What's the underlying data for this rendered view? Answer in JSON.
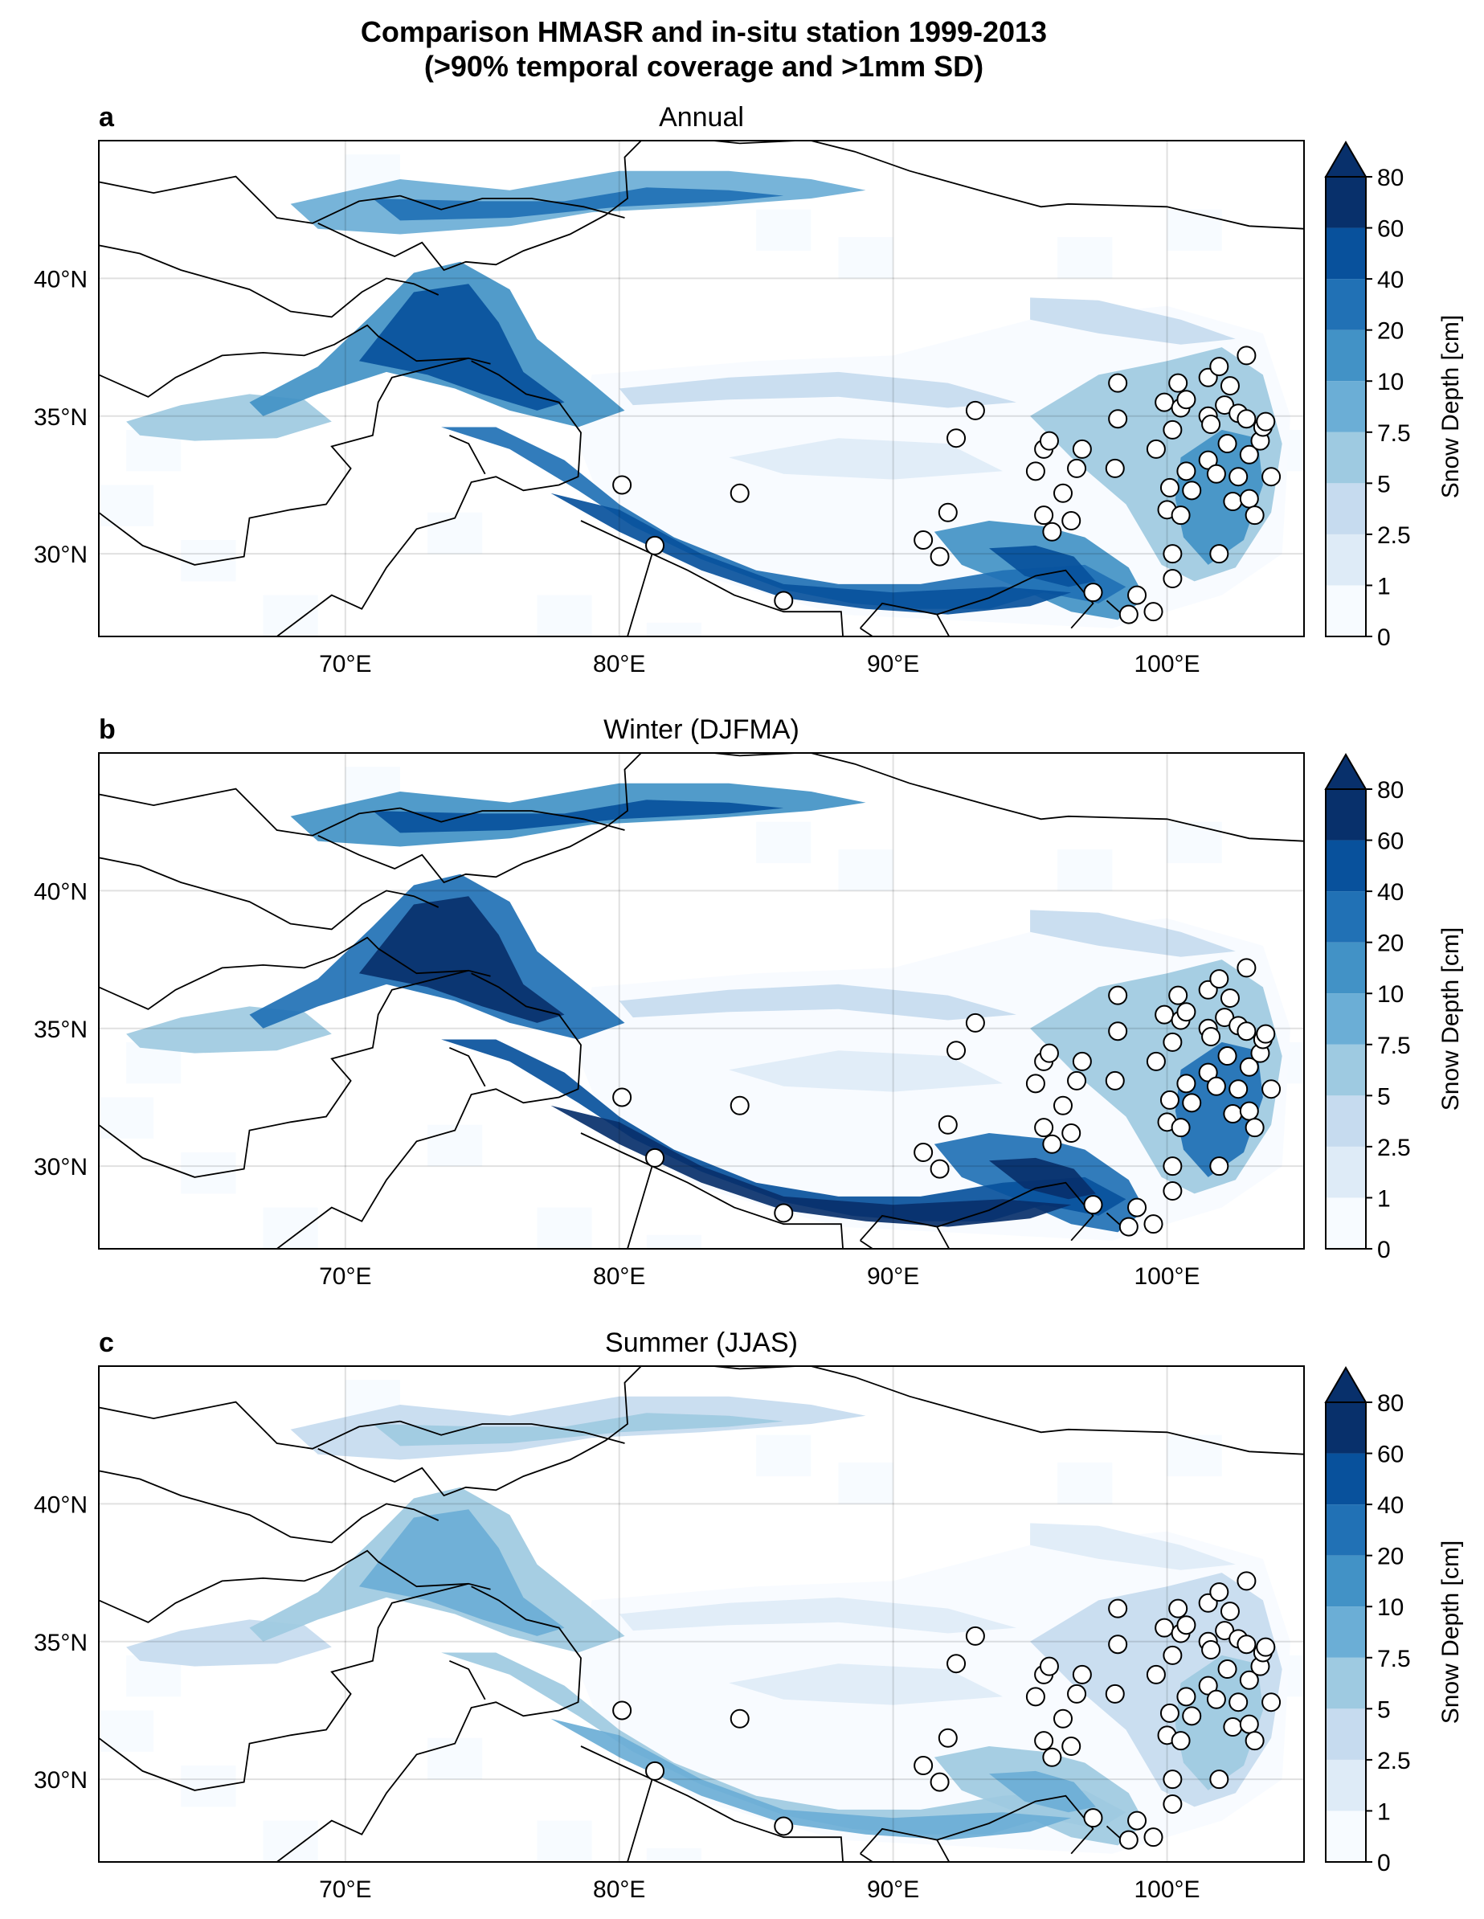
{
  "figure": {
    "title_line1": "Comparison HMASR and in-situ station 1999-2013",
    "title_line2": "(>90% temporal coverage and >1mm SD)"
  },
  "map": {
    "lon_range": [
      61,
      105
    ],
    "lat_range": [
      27,
      45
    ],
    "lon_ticks": [
      "70°E",
      "80°E",
      "90°E",
      "100°E"
    ],
    "lat_ticks": [
      "40°N",
      "35°N",
      "30°N"
    ],
    "gridlines": true,
    "colormap": "Blues",
    "colors": [
      "#f7fbff",
      "#deebf7",
      "#c6dbef",
      "#9ecae1",
      "#6baed6",
      "#4292c6",
      "#2171b5",
      "#08519c",
      "#08306b"
    ],
    "marker_face": "#ffffff",
    "marker_edge": "#000000"
  },
  "colorbar": {
    "label": "Snow Depth [cm]",
    "ticks": [
      "0",
      "1",
      "2.5",
      "5",
      "7.5",
      "10",
      "20",
      "40",
      "60",
      "80"
    ],
    "extend": "max"
  },
  "panels": [
    {
      "letter": "a",
      "title": "Annual",
      "snow_level": 1.0
    },
    {
      "letter": "b",
      "title": "Winter (DJFMA)",
      "snow_level": 1.15
    },
    {
      "letter": "c",
      "title": "Summer (JJAS)",
      "snow_level": 0.55
    }
  ],
  "stations": [
    {
      "lon": 80.1,
      "lat": 32.5
    },
    {
      "lon": 81.3,
      "lat": 30.3
    },
    {
      "lon": 84.4,
      "lat": 32.2
    },
    {
      "lon": 86.0,
      "lat": 28.3
    },
    {
      "lon": 91.1,
      "lat": 30.5
    },
    {
      "lon": 91.7,
      "lat": 29.9
    },
    {
      "lon": 92.0,
      "lat": 31.5
    },
    {
      "lon": 92.3,
      "lat": 34.2
    },
    {
      "lon": 93.0,
      "lat": 35.2
    },
    {
      "lon": 95.2,
      "lat": 33.0
    },
    {
      "lon": 95.5,
      "lat": 33.8
    },
    {
      "lon": 95.7,
      "lat": 34.1
    },
    {
      "lon": 95.5,
      "lat": 31.4
    },
    {
      "lon": 95.8,
      "lat": 30.8
    },
    {
      "lon": 96.2,
      "lat": 32.2
    },
    {
      "lon": 96.5,
      "lat": 31.2
    },
    {
      "lon": 96.7,
      "lat": 33.1
    },
    {
      "lon": 96.9,
      "lat": 33.8
    },
    {
      "lon": 97.3,
      "lat": 28.6
    },
    {
      "lon": 98.1,
      "lat": 33.1
    },
    {
      "lon": 98.2,
      "lat": 34.9
    },
    {
      "lon": 98.2,
      "lat": 36.2
    },
    {
      "lon": 98.6,
      "lat": 27.8
    },
    {
      "lon": 98.9,
      "lat": 28.5
    },
    {
      "lon": 99.5,
      "lat": 27.9
    },
    {
      "lon": 99.6,
      "lat": 33.8
    },
    {
      "lon": 99.9,
      "lat": 35.5
    },
    {
      "lon": 100.0,
      "lat": 31.6
    },
    {
      "lon": 100.1,
      "lat": 32.4
    },
    {
      "lon": 100.2,
      "lat": 34.5
    },
    {
      "lon": 100.4,
      "lat": 36.2
    },
    {
      "lon": 100.5,
      "lat": 35.3
    },
    {
      "lon": 100.5,
      "lat": 31.4
    },
    {
      "lon": 100.7,
      "lat": 33.0
    },
    {
      "lon": 100.7,
      "lat": 35.6
    },
    {
      "lon": 100.9,
      "lat": 32.3
    },
    {
      "lon": 100.2,
      "lat": 30.0
    },
    {
      "lon": 100.2,
      "lat": 29.1
    },
    {
      "lon": 101.5,
      "lat": 36.4
    },
    {
      "lon": 101.5,
      "lat": 35.0
    },
    {
      "lon": 101.6,
      "lat": 34.7
    },
    {
      "lon": 101.5,
      "lat": 33.4
    },
    {
      "lon": 101.8,
      "lat": 32.9
    },
    {
      "lon": 101.9,
      "lat": 36.8
    },
    {
      "lon": 102.1,
      "lat": 35.4
    },
    {
      "lon": 102.2,
      "lat": 34.0
    },
    {
      "lon": 102.3,
      "lat": 36.1
    },
    {
      "lon": 102.4,
      "lat": 31.9
    },
    {
      "lon": 102.6,
      "lat": 35.1
    },
    {
      "lon": 102.6,
      "lat": 32.8
    },
    {
      "lon": 102.9,
      "lat": 37.2
    },
    {
      "lon": 102.9,
      "lat": 34.9
    },
    {
      "lon": 103.0,
      "lat": 33.6
    },
    {
      "lon": 103.0,
      "lat": 32.0
    },
    {
      "lon": 103.2,
      "lat": 31.4
    },
    {
      "lon": 103.4,
      "lat": 34.1
    },
    {
      "lon": 103.5,
      "lat": 34.6
    },
    {
      "lon": 103.6,
      "lat": 34.8
    },
    {
      "lon": 103.8,
      "lat": 32.8
    },
    {
      "lon": 101.9,
      "lat": 30.0
    }
  ]
}
